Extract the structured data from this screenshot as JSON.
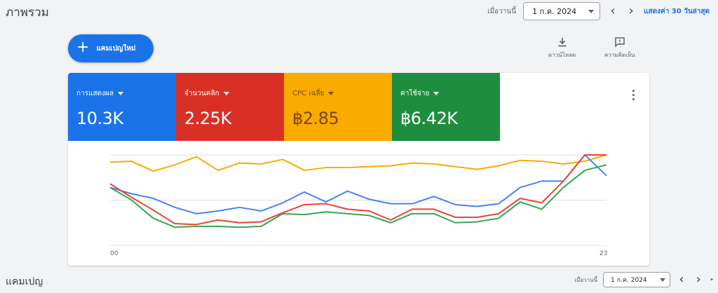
{
  "header": {
    "title": "ภาพรวม",
    "date_label": "เมื่อวานนี้",
    "date_value": "1 ก.ค. 2024",
    "prev_icon": "chevron-left-icon",
    "next_icon": "chevron-right-icon",
    "range_link": "แสดงค่า 30 วันล่าสุด"
  },
  "toolbar": {
    "new_campaign_label": "แคมเปญใหม่",
    "download_label": "ดาวน์โหลด",
    "feedback_label": "ความคิดเห็น"
  },
  "metrics": [
    {
      "label": "การแสดงผล",
      "value": "10.3K",
      "color": "#1a73e8"
    },
    {
      "label": "จำนวนคลิก",
      "value": "2.25K",
      "color": "#d93025"
    },
    {
      "label": "CPC เฉลี่ย",
      "value": "฿2.85",
      "color": "#f9ab00"
    },
    {
      "label": "ค่าใช้จ่าย",
      "value": "฿6.42K",
      "color": "#1e8e3e"
    }
  ],
  "chart_data": {
    "type": "line",
    "x": [
      "00",
      "01",
      "02",
      "03",
      "04",
      "05",
      "06",
      "07",
      "08",
      "09",
      "10",
      "11",
      "12",
      "13",
      "14",
      "15",
      "16",
      "17",
      "18",
      "19",
      "20",
      "21",
      "22",
      "23"
    ],
    "x_tick_labels": [
      "00",
      "23"
    ],
    "ylim": [
      0,
      100
    ],
    "grid": true,
    "series": [
      {
        "color": "#f9ab00",
        "values": [
          92,
          93,
          82,
          89,
          98,
          83,
          91,
          90,
          95,
          83,
          86,
          86,
          87,
          88,
          91,
          90,
          87,
          84,
          88,
          94,
          93,
          90,
          93,
          100
        ]
      },
      {
        "color": "#4285f4",
        "values": [
          64,
          57,
          52,
          42,
          35,
          38,
          42,
          38,
          47,
          59,
          48,
          60,
          51,
          46,
          46,
          54,
          45,
          43,
          46,
          64,
          71,
          71,
          100,
          77
        ]
      },
      {
        "color": "#ea4335",
        "values": [
          68,
          53,
          39,
          24,
          23,
          28,
          25,
          26,
          36,
          45,
          46,
          40,
          38,
          28,
          40,
          40,
          31,
          31,
          35,
          52,
          47,
          71,
          100,
          100
        ]
      },
      {
        "color": "#34a853",
        "values": [
          64,
          50,
          30,
          20,
          21,
          21,
          20,
          21,
          35,
          34,
          37,
          35,
          33,
          25,
          35,
          35,
          25,
          26,
          30,
          48,
          40,
          64,
          83,
          89
        ]
      }
    ]
  },
  "section": {
    "title": "แคมเปญ",
    "date_label": "เมื่อวานนี้",
    "date_value": "1 ก.ค. 2024"
  }
}
